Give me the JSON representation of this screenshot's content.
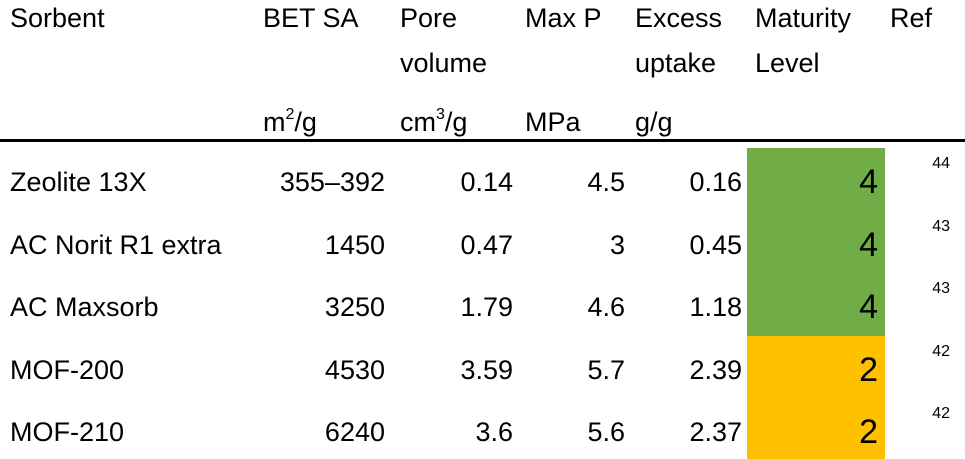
{
  "table": {
    "headers": [
      [
        "Sorbent"
      ],
      [
        "BET SA"
      ],
      [
        "Pore",
        "volume"
      ],
      [
        "Max P"
      ],
      [
        "Excess",
        "uptake"
      ],
      [
        "Maturity",
        "Level"
      ],
      [
        "Ref"
      ]
    ],
    "units": [
      null,
      {
        "pre": "m",
        "sup": "2",
        "post": "/g"
      },
      {
        "pre": "cm",
        "sup": "3",
        "post": "/g"
      },
      {
        "pre": "MPa"
      },
      {
        "pre": "g/g"
      },
      null,
      null
    ],
    "rows": [
      [
        "Zeolite 13X",
        "355–392",
        0.14,
        4.5,
        0.16,
        4,
        44
      ],
      [
        "AC Norit R1 extra",
        1450,
        0.47,
        3,
        0.45,
        4,
        43
      ],
      [
        "AC Maxsorb",
        3250,
        1.79,
        4.6,
        1.18,
        4,
        43
      ],
      [
        "MOF-200",
        4530,
        3.59,
        5.7,
        2.39,
        2,
        42
      ],
      [
        "MOF-210",
        6240,
        3.6,
        5.6,
        2.37,
        2,
        42
      ]
    ],
    "maturity_colors": {
      "4": "#70ad47",
      "2": "#ffc000"
    }
  }
}
